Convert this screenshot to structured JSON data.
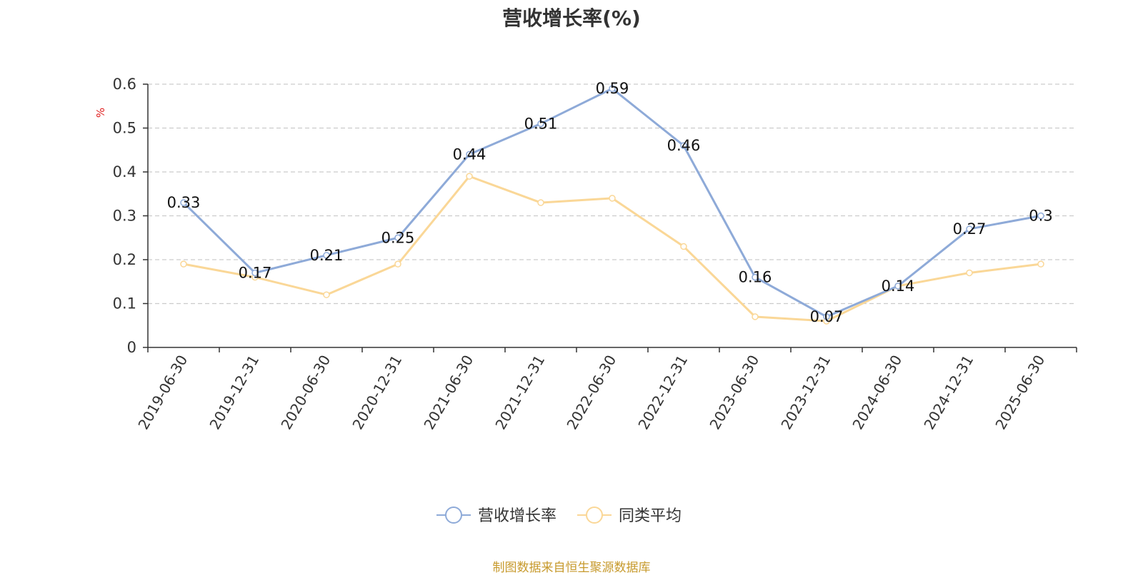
{
  "chart_data": {
    "type": "line",
    "title": "营收增长率(%)",
    "ylabel": "%",
    "categories": [
      "2019-06-30",
      "2019-12-31",
      "2020-06-30",
      "2020-12-31",
      "2021-06-30",
      "2021-12-31",
      "2022-06-30",
      "2022-12-31",
      "2023-06-30",
      "2023-12-31",
      "2024-06-30",
      "2024-12-31",
      "2025-06-30"
    ],
    "ylim": [
      0,
      0.6
    ],
    "yticks": [
      "0",
      "0.1",
      "0.2",
      "0.3",
      "0.4",
      "0.5",
      "0.6"
    ],
    "grid": true,
    "legend_position": "bottom",
    "series": [
      {
        "name": "营收增长率",
        "color": "#8eaad8",
        "values": [
          0.33,
          0.17,
          0.21,
          0.25,
          0.44,
          0.51,
          0.59,
          0.46,
          0.16,
          0.07,
          0.14,
          0.27,
          0.3
        ],
        "labels": [
          "0.33",
          "0.17",
          "0.21",
          "0.25",
          "0.44",
          "0.51",
          "0.59",
          "0.46",
          "0.16",
          "0.07",
          "0.14",
          "0.27",
          "0.3"
        ]
      },
      {
        "name": "同类平均",
        "color": "#fad797",
        "values": [
          0.19,
          0.16,
          0.12,
          0.19,
          0.39,
          0.33,
          0.34,
          0.23,
          0.07,
          0.06,
          0.14,
          0.17,
          0.19
        ]
      }
    ]
  },
  "source_note": "制图数据来自恒生聚源数据库",
  "colors": {
    "unit_label": "#e02020",
    "grid": "#cccccc",
    "axis": "#333333",
    "text": "#333333",
    "source": "#c79a2d"
  }
}
